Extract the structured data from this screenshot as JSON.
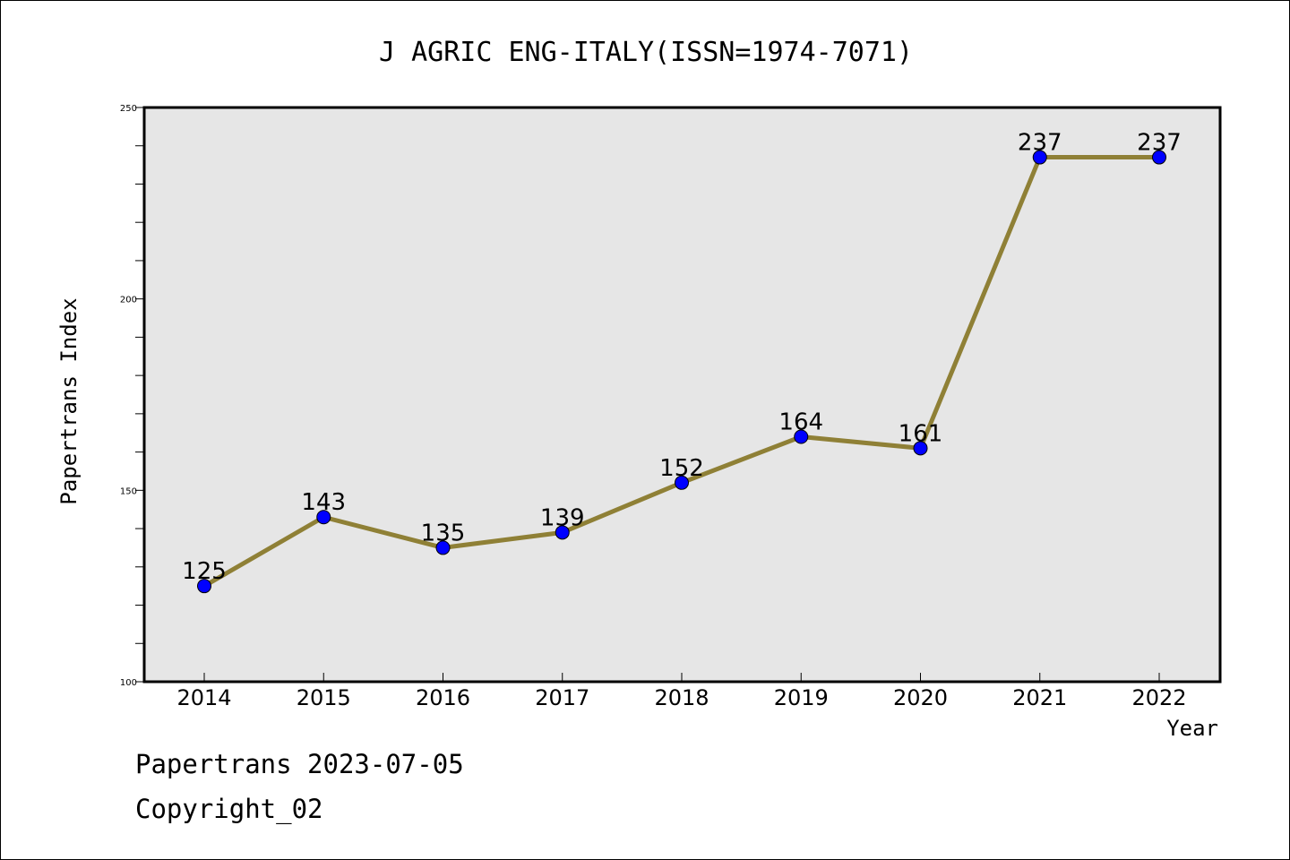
{
  "chart_data": {
    "type": "line",
    "title": "J AGRIC ENG-ITALY(ISSN=1974-7071)",
    "xlabel": "Year",
    "ylabel": "Papertrans Index",
    "categories": [
      "2014",
      "2015",
      "2016",
      "2017",
      "2018",
      "2019",
      "2020",
      "2021",
      "2022"
    ],
    "values": [
      125,
      143,
      135,
      139,
      152,
      164,
      161,
      237,
      237
    ],
    "ylim": [
      100,
      250
    ],
    "yticks": [
      "100",
      "150",
      "200",
      "250"
    ],
    "grid": false,
    "line_color": "#8f8036",
    "marker_color": "#0000ff",
    "plot_background": "#e6e6e6"
  },
  "footer": {
    "date_line": "Papertrans 2023-07-05",
    "copyright": "Copyright_02"
  }
}
